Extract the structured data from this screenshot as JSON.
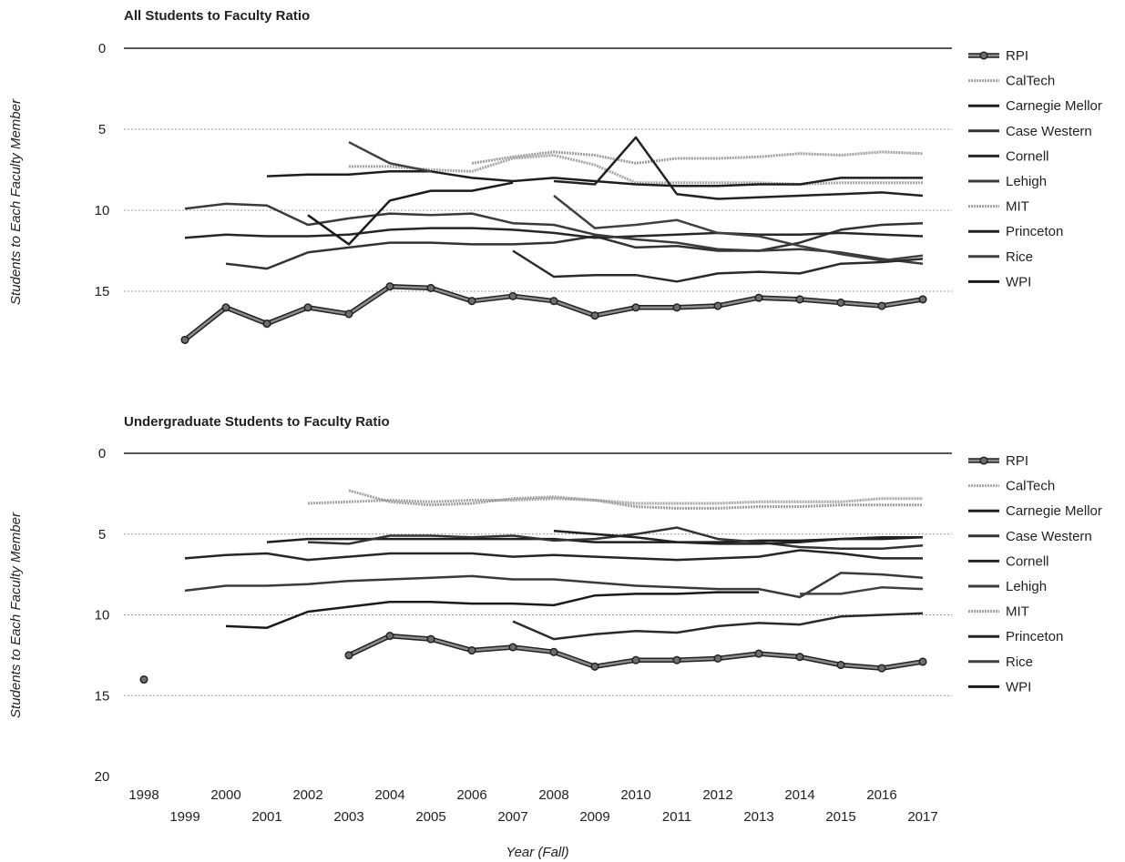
{
  "chart_data": [
    {
      "type": "line",
      "title": "All Students to Faculty Ratio",
      "ylabel": "Students to Each Faculty Member",
      "xlabel": "",
      "ylim": [
        0,
        20
      ],
      "y_reversed": true,
      "yticks": [
        "0",
        "5",
        "10",
        "15"
      ],
      "grid": true,
      "legend": "right",
      "x": [
        1998,
        1999,
        2000,
        2001,
        2002,
        2003,
        2004,
        2005,
        2006,
        2007,
        2008,
        2009,
        2010,
        2011,
        2012,
        2013,
        2014,
        2015,
        2016,
        2017
      ],
      "series": [
        {
          "name": "RPI",
          "color": "#3a3a3a",
          "values": [
            null,
            18,
            16,
            17,
            16,
            16.4,
            14.7,
            14.8,
            15.6,
            15.3,
            15.6,
            16.5,
            16,
            16,
            15.9,
            15.4,
            15.5,
            15.7,
            15.9,
            15.5
          ]
        },
        {
          "name": "CalTech",
          "color": "#a6a6a6",
          "values": [
            null,
            null,
            null,
            null,
            null,
            7.3,
            7.3,
            7.5,
            7.6,
            6.8,
            6.6,
            7.2,
            8.3,
            8.3,
            8.3,
            8.3,
            8.4,
            8.3,
            8.3,
            8.3
          ]
        },
        {
          "name": "Carnegie Mellon",
          "color": "#1e1e1e",
          "values": [
            null,
            null,
            null,
            7.9,
            7.8,
            7.8,
            7.6,
            7.6,
            8,
            8.2,
            8,
            8.2,
            8.4,
            8.5,
            8.5,
            8.4,
            8.4,
            8,
            8,
            8
          ]
        },
        {
          "name": "Case Western",
          "color": "#333333",
          "values": [
            null,
            null,
            13.3,
            13.6,
            12.6,
            12.3,
            12,
            12,
            12.1,
            12.1,
            12,
            11.6,
            12.3,
            12.2,
            12.5,
            12.5,
            12,
            11.2,
            10.9,
            10.8
          ]
        },
        {
          "name": "Cornell",
          "color": "#262626",
          "values": [
            null,
            11.7,
            11.5,
            11.6,
            11.6,
            11.5,
            11.2,
            11.1,
            11.1,
            11.2,
            11.4,
            11.7,
            11.6,
            11.5,
            11.4,
            11.5,
            11.5,
            11.4,
            11.5,
            11.6
          ]
        },
        {
          "name": "Lehigh",
          "color": "#3a3a3a",
          "values": [
            null,
            9.9,
            9.6,
            9.7,
            10.9,
            10.5,
            10.2,
            10.3,
            10.2,
            10.8,
            10.9,
            11.5,
            11.8,
            12,
            12.4,
            12.5,
            12.4,
            12.6,
            13,
            13.3
          ]
        },
        {
          "name": "MIT",
          "color": "#a0a0a0",
          "values": [
            null,
            null,
            null,
            null,
            null,
            null,
            null,
            null,
            7.1,
            6.7,
            6.4,
            6.6,
            7.1,
            6.8,
            6.8,
            6.7,
            6.5,
            6.6,
            6.4,
            6.5
          ]
        },
        {
          "name": "Princeton",
          "color": "#222222",
          "values": [
            null,
            null,
            null,
            null,
            null,
            null,
            null,
            null,
            null,
            null,
            8.2,
            8.4,
            5.5,
            9,
            9.3,
            9.2,
            9.1,
            9,
            8.9,
            9.1
          ]
        },
        {
          "name": "Rice",
          "color": "#404040",
          "values": [
            null,
            null,
            null,
            null,
            null,
            5.8,
            7.1,
            7.6,
            null,
            null,
            9.1,
            11.1,
            10.9,
            10.6,
            11.4,
            11.6,
            12.2,
            12.7,
            13.1,
            12.8
          ]
        },
        {
          "name": "WPI",
          "color": "#1a1a1a",
          "values": [
            null,
            null,
            null,
            null,
            10.3,
            12.1,
            9.4,
            8.8,
            8.8,
            8.3,
            null,
            null,
            null,
            null,
            null,
            null,
            null,
            null,
            null,
            null
          ]
        },
        {
          "name": "",
          "color": "#2a2a2a",
          "values": [
            null,
            null,
            null,
            null,
            null,
            null,
            null,
            null,
            null,
            12.5,
            14.1,
            14,
            14,
            14.4,
            13.9,
            13.8,
            13.9,
            13.3,
            13.2,
            13
          ]
        }
      ]
    },
    {
      "type": "line",
      "title": "Undergraduate Students to Faculty Ratio",
      "ylabel": "Students to Each Faculty Member",
      "xlabel": "Year (Fall)",
      "ylim": [
        0,
        20
      ],
      "y_reversed": true,
      "yticks": [
        "0",
        "5",
        "10",
        "15",
        "20"
      ],
      "grid": true,
      "legend": "right",
      "x": [
        1998,
        1999,
        2000,
        2001,
        2002,
        2003,
        2004,
        2005,
        2006,
        2007,
        2008,
        2009,
        2010,
        2011,
        2012,
        2013,
        2014,
        2015,
        2016,
        2017
      ],
      "xtick_labels": [
        "1998",
        "1999",
        "2000",
        "2001",
        "2002",
        "2003",
        "2004",
        "2005",
        "2006",
        "2007",
        "2008",
        "2009",
        "2010",
        "2011",
        "2012",
        "2013",
        "2014",
        "2015",
        "2016",
        "2017"
      ],
      "series": [
        {
          "name": "RPI",
          "color": "#3a3a3a",
          "values": [
            14,
            null,
            null,
            null,
            null,
            12.5,
            11.3,
            11.5,
            12.2,
            12,
            12.3,
            13.2,
            12.8,
            12.8,
            12.7,
            12.4,
            12.6,
            13.1,
            13.3,
            12.9
          ]
        },
        {
          "name": "CalTech",
          "color": "#a6a6a6",
          "values": [
            null,
            null,
            null,
            null,
            3.1,
            3,
            2.9,
            3,
            2.9,
            2.9,
            2.8,
            2.9,
            3.1,
            3.1,
            3.1,
            3,
            3,
            3,
            2.8,
            2.8
          ]
        },
        {
          "name": "Carnegie Mellon",
          "color": "#1e1e1e",
          "values": [
            null,
            null,
            null,
            5.5,
            5.3,
            5.3,
            5.3,
            5.3,
            5.3,
            5.3,
            5.3,
            5.5,
            5.5,
            5.5,
            5.5,
            5.4,
            5.4,
            5.3,
            5.3,
            5.2
          ]
        },
        {
          "name": "Case Western",
          "color": "#333333",
          "values": [
            null,
            null,
            null,
            null,
            5.5,
            5.6,
            5.1,
            5.1,
            5.2,
            5.1,
            5.4,
            5.3,
            5,
            4.6,
            5.3,
            5.5,
            5.8,
            5.9,
            5.9,
            5.7
          ]
        },
        {
          "name": "Cornell",
          "color": "#262626",
          "values": [
            null,
            6.5,
            6.3,
            6.2,
            6.6,
            6.4,
            6.2,
            6.2,
            6.2,
            6.4,
            6.3,
            6.4,
            6.5,
            6.6,
            6.5,
            6.4,
            6,
            6.2,
            6.5,
            6.5
          ]
        },
        {
          "name": "Lehigh",
          "color": "#3a3a3a",
          "values": [
            null,
            8.5,
            8.2,
            8.2,
            8.1,
            7.9,
            7.8,
            7.7,
            7.6,
            7.8,
            7.8,
            8,
            8.2,
            8.3,
            8.4,
            8.4,
            8.9,
            7.4,
            7.5,
            7.7
          ]
        },
        {
          "name": "MIT",
          "color": "#a0a0a0",
          "values": [
            null,
            null,
            null,
            null,
            null,
            2.3,
            3,
            3.2,
            3.1,
            2.8,
            2.7,
            2.9,
            3.3,
            3.4,
            3.4,
            3.3,
            3.3,
            3.2,
            3.2,
            3.2
          ]
        },
        {
          "name": "Princeton",
          "color": "#222222",
          "values": [
            null,
            null,
            null,
            null,
            null,
            null,
            null,
            null,
            null,
            null,
            4.8,
            5,
            5.2,
            5.5,
            5.6,
            5.6,
            5.5,
            5.3,
            5.2,
            5.2
          ]
        },
        {
          "name": "Rice",
          "color": "#404040",
          "values": [
            null,
            null,
            null,
            null,
            null,
            null,
            null,
            null,
            null,
            null,
            null,
            null,
            null,
            null,
            null,
            null,
            8.7,
            8.7,
            8.3,
            8.4
          ]
        },
        {
          "name": "WPI",
          "color": "#1a1a1a",
          "values": [
            null,
            null,
            10.7,
            10.8,
            9.8,
            9.5,
            9.2,
            9.2,
            9.3,
            9.3,
            9.4,
            8.8,
            8.7,
            8.7,
            8.6,
            8.6,
            null,
            null,
            null,
            null
          ]
        },
        {
          "name": "",
          "color": "#2a2a2a",
          "values": [
            null,
            null,
            null,
            null,
            null,
            null,
            null,
            null,
            null,
            10.4,
            11.5,
            11.2,
            11,
            11.1,
            10.7,
            10.5,
            10.6,
            10.1,
            10,
            9.9
          ]
        }
      ]
    }
  ],
  "legend_labels": [
    "RPI",
    "CalTech",
    "Carnegie Mellor",
    "Case Western",
    "Cornell",
    "Lehigh",
    "MIT",
    "Princeton",
    "Rice",
    "WPI"
  ]
}
